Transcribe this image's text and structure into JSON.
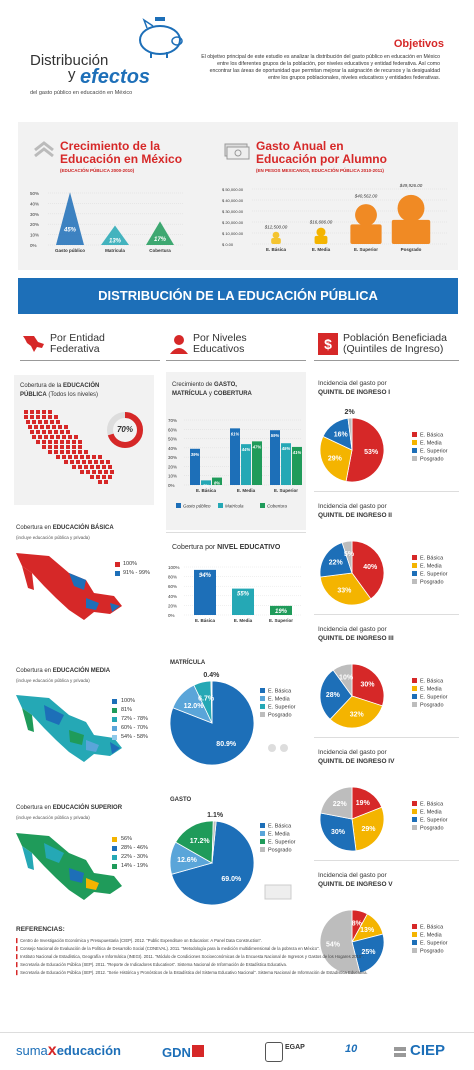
{
  "header": {
    "title_line1": "Distribución",
    "title_line2_a": "y",
    "title_line2_b": "efectos",
    "subtitle": "del gasto público en educación en México",
    "objetivos_title": "Objetivos",
    "objetivos_text": "El objetivo principal de este estudio es analizar la distribución del gasto público en educación en México entre los diferentes grupos de la población, por niveles educativos y entidad federativa. Así como encontrar las áreas de oportunidad que permitan mejorar la asignación de recursos y la desigualdad entre los grupos poblacionales, niveles educativos y entidades federativas."
  },
  "crecimiento": {
    "title_1": "Crecimiento de la",
    "title_2": "Educación en México",
    "subtitle": "(EDUCACIÓN PÚBLICA 2000-2010)",
    "chart_data": {
      "type": "bar",
      "categories": [
        "Gasto público",
        "Matrícula",
        "Cobertura"
      ],
      "values": [
        45,
        13,
        17
      ],
      "value_labels": [
        "45%",
        "13%",
        "17%"
      ],
      "yticks": [
        "50%",
        "40%",
        "30%",
        "20%",
        "10%",
        "0%"
      ],
      "ylim": [
        0,
        50
      ]
    }
  },
  "gasto_anual": {
    "title_1": "Gasto Anual en",
    "title_2": "Educación por Alumno",
    "subtitle": "(EN PESOS MEXICANOS, EDUCACIÓN PÚBLICA 2010-2011)",
    "chart_data": {
      "type": "bar",
      "categories": [
        "E. Básica",
        "E. Media",
        "E. Superior",
        "Posgrado"
      ],
      "values": [
        12500,
        16686,
        40562,
        49926
      ],
      "value_labels": [
        "$12,500.00",
        "$16,686.00",
        "$40,562.00",
        "$49,926.00"
      ],
      "yticks": [
        "$ 50,000.00",
        "$ 40,000.00",
        "$ 30,000.00",
        "$ 20,000.00",
        "$ 10,000.00",
        "$ 0.00"
      ],
      "ylim": [
        0,
        50000
      ]
    }
  },
  "banner": "DISTRIBUCIÓN DE LA EDUCACIÓN PÚBLICA",
  "columns": {
    "entidad": [
      "Por Entidad",
      "Federativa"
    ],
    "niveles": [
      "Por Niveles",
      "Educativos"
    ],
    "poblacion": [
      "Población Beneficiada",
      "(Quintiles de Ingreso)"
    ]
  },
  "entidad": {
    "publica_title_a": "Cobertura de la",
    "publica_title_b": "EDUCACIÓN",
    "publica_title_c": "PÚBLICA",
    "publica_title_d": "(Todos los niveles)",
    "publica_value": "70%",
    "basica_title_a": "Cobertura en",
    "basica_title_b": "EDUCACIÓN BÁSICA",
    "basica_sub": "(incluye educación pública y privada)",
    "basica_legend": [
      "100%",
      "91% - 99%"
    ],
    "media_title_a": "Cobertura en",
    "media_title_b": "EDUCACIÓN MEDIA",
    "media_sub": "(incluye educación pública y privada)",
    "media_legend": [
      "100%",
      "81%",
      "72% - 78%",
      "60% - 70%",
      "54% - 58%"
    ],
    "superior_title_a": "Cobertura en",
    "superior_title_b": "EDUCACIÓN SUPERIOR",
    "superior_sub": "(incluye educación pública y privada)",
    "superior_legend": [
      "56%",
      "28% - 46%",
      "22% - 30%",
      "14% - 19%"
    ],
    "colors": {
      "red": "#d62828",
      "blue": "#1d6fb8",
      "green": "#1f9b5a",
      "teal": "#25a8b5",
      "lightblue": "#5aa5d9",
      "yellow": "#f4b400",
      "gray": "#bdbdbd",
      "orange": "#f08a24"
    }
  },
  "niveles": {
    "crec_title_a": "Crecimiento de",
    "crec_title_b": "GASTO,",
    "crec_title_c": "MATRÍCULA",
    "crec_title_d": "y",
    "crec_title_e": "COBERTURA",
    "crec_chart": {
      "type": "bar",
      "categories": [
        "E. Básica",
        "E. Media",
        "E. Superior"
      ],
      "series": [
        {
          "name": "Gasto público",
          "values": [
            39,
            61,
            59
          ],
          "labels": [
            "39%",
            "61%",
            "59%"
          ]
        },
        {
          "name": "Matrícula",
          "values": [
            5,
            44,
            45
          ],
          "labels": [
            "5%",
            "44%",
            "45%"
          ]
        },
        {
          "name": "Cobertura",
          "values": [
            8,
            47,
            41
          ],
          "labels": [
            "8%",
            "47%",
            "41%"
          ]
        }
      ],
      "yticks": [
        "70%",
        "60%",
        "50%",
        "40%",
        "30%",
        "20%",
        "10%",
        "0%"
      ],
      "ylim": [
        0,
        70
      ]
    },
    "cob_title_a": "Cobertura por",
    "cob_title_b": "NIVEL EDUCATIVO",
    "cob_chart": {
      "type": "bar",
      "categories": [
        "E. Básica",
        "E. Media",
        "E. Superior"
      ],
      "values": [
        94,
        55,
        19
      ],
      "labels": [
        "94%",
        "55%",
        "19%"
      ],
      "yticks": [
        "100%",
        "80%",
        "60%",
        "40%",
        "20%",
        "0%"
      ],
      "ylim": [
        0,
        100
      ]
    },
    "matricula_title": "MATRÍCULA",
    "matricula_pie": {
      "type": "pie",
      "labels": [
        "E. Básica",
        "E. Media",
        "E. Superior",
        "Posgrado"
      ],
      "values": [
        80.9,
        12.0,
        6.7,
        0.4
      ],
      "value_labels": [
        "80.9%",
        "12.0%",
        "6.7%",
        "0.4%"
      ]
    },
    "gasto_title": "GASTO",
    "gasto_pie": {
      "type": "pie",
      "labels": [
        "E. Básica",
        "E. Media",
        "E. Superior",
        "Posgrado"
      ],
      "values": [
        69.0,
        12.6,
        17.2,
        1.1
      ],
      "value_labels": [
        "69.0%",
        "12.6%",
        "17.2%",
        "1.1%"
      ]
    }
  },
  "quintiles": {
    "legend": [
      "E. Básica",
      "E. Media",
      "E. Superior",
      "Posgrado"
    ],
    "items": [
      {
        "title_a": "Incidencia del gasto por",
        "title_b": "QUINTIL DE INGRESO I",
        "values": [
          53,
          29,
          16,
          2
        ],
        "labels": [
          "53%",
          "29%",
          "16%",
          "2%"
        ]
      },
      {
        "title_a": "Incidencia del gasto por",
        "title_b": "QUINTIL DE INGRESO II",
        "values": [
          40,
          33,
          22,
          5
        ],
        "labels": [
          "40%",
          "33%",
          "22%",
          "5%"
        ]
      },
      {
        "title_a": "Incidencia del gasto por",
        "title_b": "QUINTIL DE INGRESO III",
        "values": [
          30,
          32,
          28,
          10
        ],
        "labels": [
          "30%",
          "32%",
          "28%",
          "10%"
        ]
      },
      {
        "title_a": "Incidencia del gasto por",
        "title_b": "QUINTIL DE INGRESO IV",
        "values": [
          19,
          29,
          30,
          22
        ],
        "labels": [
          "19%",
          "29%",
          "30%",
          "22%"
        ]
      },
      {
        "title_a": "Incidencia del gasto por",
        "title_b": "QUINTIL DE INGRESO V",
        "values": [
          8,
          13,
          25,
          54
        ],
        "labels": [
          "8%",
          "13%",
          "25%",
          "54%"
        ]
      }
    ]
  },
  "referencias": {
    "title": "REFERENCIAS:",
    "items": [
      "Centro de Investigación Económica y Presupuestaria (CIEP). 2012. \"Public Expenditure on Education: A Panel Data Construction\".",
      "Consejo Nacional de Evaluación de la Política de Desarrollo Social (CONEVAL). 2011. \"Metodología para la medición multidimensional de la pobreza en México\".",
      "Instituto Nacional de Estadística, Geografía e Informática (INEGI). 2011. \"Módulo de Condiciones Socioeconómicas de la Encuesta Nacional de Ingresos y Gastos de los Hogares 2010\".",
      "Secretaría de Educación Pública (SEP). 2011. \"Reporte de Indicadores Educativos\". Sistema Nacional de Información de Estadística Educativa.",
      "Secretaría de Educación Pública (SEP). 2012. \"Serie Histórica y Pronósticos de la Estadística del Sistema Educativo Nacional\". Sistema Nacional de Información de Estadística Educativa."
    ]
  },
  "footer": {
    "logo1_a": "suma",
    "logo1_b": "x",
    "logo1_c": "educación",
    "logo2": "GDN",
    "logo3": "EGAP",
    "logo4": "10",
    "logo5": "CIEP"
  }
}
